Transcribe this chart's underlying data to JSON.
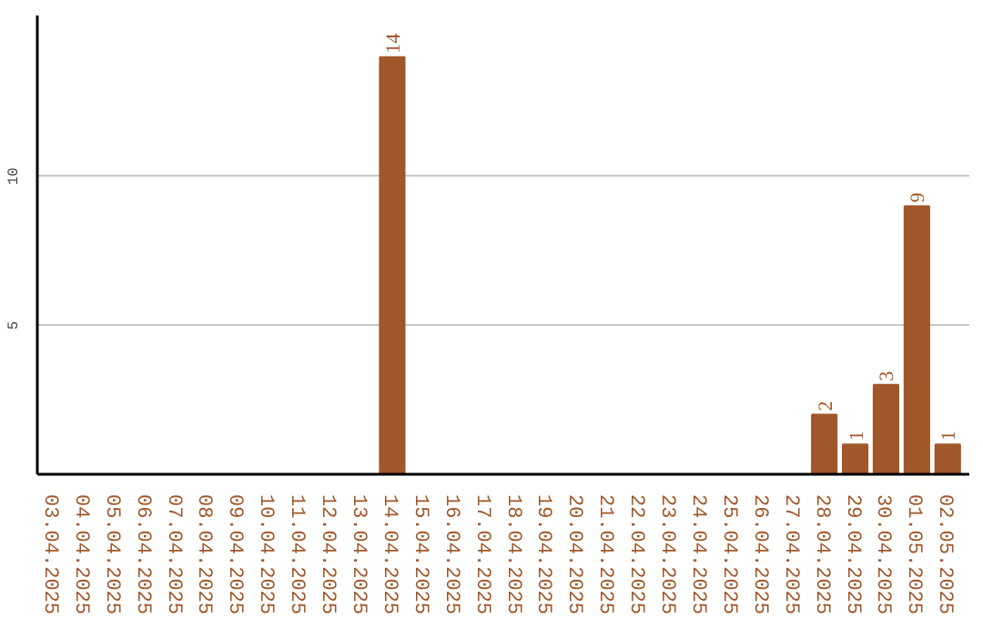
{
  "chart_data": {
    "type": "bar",
    "categories": [
      "03.04.2025",
      "04.04.2025",
      "05.04.2025",
      "06.04.2025",
      "07.04.2025",
      "08.04.2025",
      "09.04.2025",
      "10.04.2025",
      "11.04.2025",
      "12.04.2025",
      "13.04.2025",
      "14.04.2025",
      "15.04.2025",
      "16.04.2025",
      "17.04.2025",
      "18.04.2025",
      "19.04.2025",
      "20.04.2025",
      "21.04.2025",
      "22.04.2025",
      "23.04.2025",
      "24.04.2025",
      "25.04.2025",
      "26.04.2025",
      "27.04.2025",
      "28.04.2025",
      "29.04.2025",
      "30.04.2025",
      "01.05.2025",
      "02.05.2025"
    ],
    "values": [
      0,
      0,
      0,
      0,
      0,
      0,
      0,
      0,
      0,
      0,
      0,
      14,
      0,
      0,
      0,
      0,
      0,
      0,
      0,
      0,
      0,
      0,
      0,
      0,
      0,
      2,
      1,
      3,
      9,
      1
    ],
    "value_labels": [
      null,
      null,
      null,
      null,
      null,
      null,
      null,
      null,
      null,
      null,
      null,
      "14",
      null,
      null,
      null,
      null,
      null,
      null,
      null,
      null,
      null,
      null,
      null,
      null,
      null,
      "2",
      "1",
      "3",
      "9",
      "1"
    ],
    "color": "#a0572a",
    "ylim": [
      0,
      15.4
    ],
    "yticks": [
      5,
      10
    ],
    "grid": "y"
  }
}
